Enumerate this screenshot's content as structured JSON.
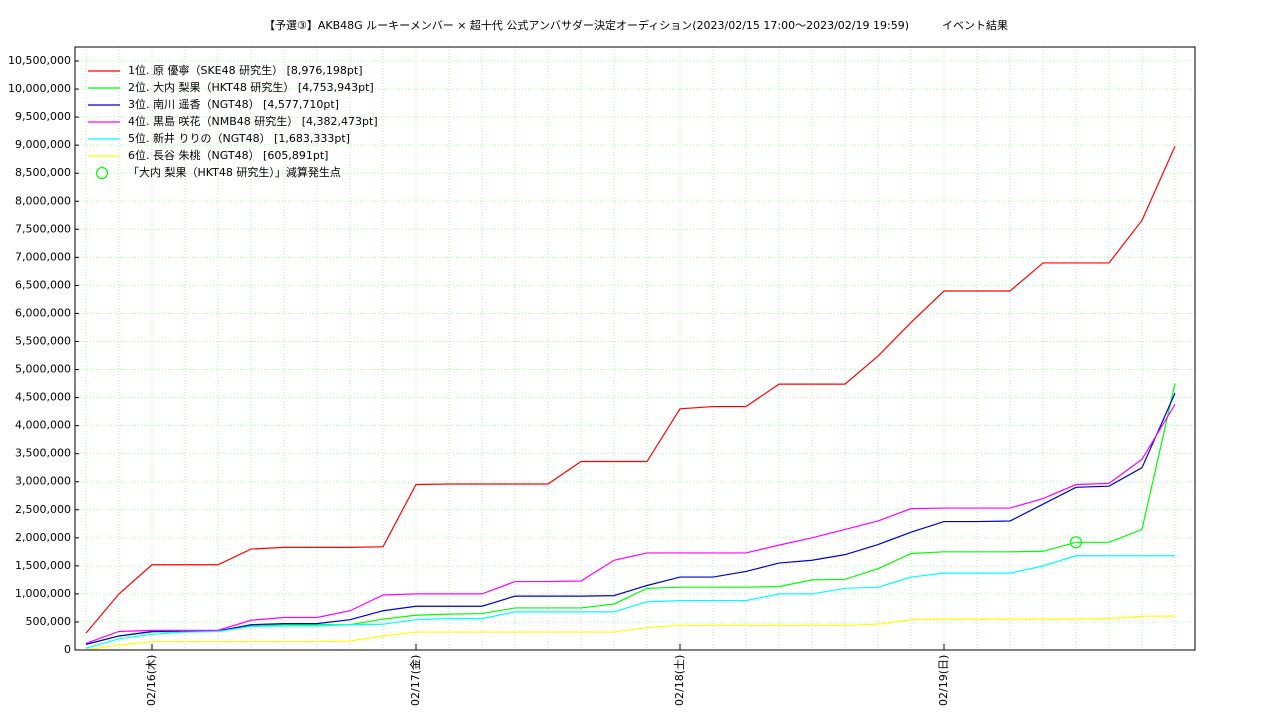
{
  "chart_data": {
    "type": "line",
    "title": "【予選③】AKB48G ルーキーメンバー × 超十代 公式アンバサダー決定オーディション(2023/02/15 17:00〜2023/02/19 19:59)　　　イベント結果",
    "categories": [
      null,
      null,
      "02/16(木)",
      null,
      null,
      null,
      null,
      null,
      null,
      null,
      "02/17(金)",
      null,
      null,
      null,
      null,
      null,
      null,
      null,
      "02/18(土)",
      null,
      null,
      null,
      null,
      null,
      null,
      null,
      "02/19(日)",
      null,
      null,
      null,
      null,
      null,
      null,
      null
    ],
    "series": [
      {
        "name": "1位. 原 優寧（SKE48 研究生） [8,976,198pt]",
        "color": "#ff0000",
        "values": [
          300000,
          1000000,
          1520000,
          1520000,
          1520000,
          1800000,
          1830000,
          1830000,
          1830000,
          1840000,
          2950000,
          2960000,
          2960000,
          2960000,
          2960000,
          3360000,
          3360000,
          3360000,
          4300000,
          4340000,
          4340000,
          4740000,
          4740000,
          4740000,
          5240000,
          5840000,
          6400000,
          6400000,
          6400000,
          6900000,
          6900000,
          6900000,
          7660000,
          8980000
        ]
      },
      {
        "name": "2位. 大内 梨果（HKT48 研究生） [4,753,943pt]",
        "color": "#00ff00",
        "values": [
          100000,
          250000,
          320000,
          330000,
          340000,
          430000,
          450000,
          450000,
          450000,
          550000,
          620000,
          640000,
          650000,
          750000,
          750000,
          750000,
          820000,
          1100000,
          1120000,
          1120000,
          1120000,
          1130000,
          1250000,
          1260000,
          1450000,
          1720000,
          1750000,
          1750000,
          1750000,
          1760000,
          1920000,
          1920000,
          2150000,
          4750000
        ]
      },
      {
        "name": "3位. 南川 遥香（NGT48） [4,577,710pt]",
        "color": "#0000cc",
        "values": [
          100000,
          250000,
          330000,
          340000,
          340000,
          450000,
          470000,
          470000,
          540000,
          700000,
          780000,
          780000,
          780000,
          960000,
          960000,
          960000,
          970000,
          1150000,
          1300000,
          1300000,
          1400000,
          1550000,
          1600000,
          1700000,
          1880000,
          2100000,
          2290000,
          2290000,
          2300000,
          2600000,
          2900000,
          2920000,
          3250000,
          4580000
        ]
      },
      {
        "name": "4位. 黒島 咲花（NMB48 研究生） [4,382,473pt]",
        "color": "#ff00ff",
        "values": [
          120000,
          330000,
          350000,
          350000,
          350000,
          530000,
          580000,
          580000,
          700000,
          980000,
          1000000,
          1000000,
          1000000,
          1220000,
          1220000,
          1230000,
          1600000,
          1730000,
          1730000,
          1730000,
          1730000,
          1870000,
          2000000,
          2150000,
          2300000,
          2520000,
          2530000,
          2530000,
          2530000,
          2700000,
          2950000,
          2970000,
          3400000,
          4380000
        ]
      },
      {
        "name": "5位. 新井 りりの（NGT48） [1,683,333pt]",
        "color": "#00ffff",
        "values": [
          30000,
          200000,
          280000,
          320000,
          330000,
          420000,
          430000,
          430000,
          450000,
          460000,
          540000,
          560000,
          560000,
          680000,
          680000,
          680000,
          680000,
          860000,
          880000,
          880000,
          880000,
          1000000,
          1000000,
          1100000,
          1120000,
          1300000,
          1370000,
          1370000,
          1370000,
          1500000,
          1680000,
          1680000,
          1680000,
          1680000
        ]
      },
      {
        "name": "6位. 長谷 朱桃（NGT48） [605,891pt]",
        "color": "#ffff00",
        "values": [
          0,
          90000,
          150000,
          150000,
          150000,
          150000,
          150000,
          150000,
          160000,
          250000,
          320000,
          320000,
          320000,
          320000,
          320000,
          320000,
          320000,
          400000,
          440000,
          440000,
          440000,
          440000,
          440000,
          440000,
          460000,
          540000,
          550000,
          550000,
          550000,
          550000,
          550000,
          560000,
          600000,
          606000
        ]
      }
    ],
    "marker": {
      "name": "「大内 梨果（HKT48 研究生）」減算発生点",
      "color": "#00ff00",
      "x_index": 30,
      "value": 1920000
    },
    "ylim": [
      0,
      10750000
    ],
    "yticks": [
      0,
      {
        "value": 500000,
        "label": "500,000"
      },
      {
        "value": 1000000,
        "label": "1,000,000"
      },
      {
        "value": 1500000,
        "label": "1,500,000"
      },
      {
        "value": 2000000,
        "label": "2,000,000"
      },
      {
        "value": 2500000,
        "label": "2,500,000"
      },
      {
        "value": 3000000,
        "label": "3,000,000"
      },
      {
        "value": 3500000,
        "label": "3,500,000"
      },
      {
        "value": 4000000,
        "label": "4,000,000"
      },
      {
        "value": 4500000,
        "label": "4,500,000"
      },
      {
        "value": 5000000,
        "label": "5,000,000"
      },
      {
        "value": 5500000,
        "label": "5,500,000"
      },
      {
        "value": 6000000,
        "label": "6,000,000"
      },
      {
        "value": 6500000,
        "label": "6,500,000"
      },
      {
        "value": 7000000,
        "label": "7,000,000"
      },
      {
        "value": 7500000,
        "label": "7,500,000"
      },
      {
        "value": 8000000,
        "label": "8,000,000"
      },
      {
        "value": 8500000,
        "label": "8,500,000"
      },
      {
        "value": 9000000,
        "label": "9,000,000"
      },
      {
        "value": 9500000,
        "label": "9,500,000"
      },
      {
        "value": 10000000,
        "label": "10,000,000"
      },
      {
        "value": 10500000,
        "label": "10,500,000"
      }
    ],
    "grid": true,
    "legend": "top-left"
  }
}
